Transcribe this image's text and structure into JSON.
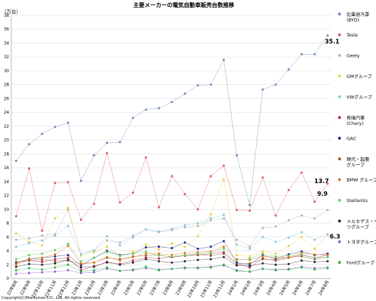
{
  "chart_data": {
    "type": "line",
    "title": "主要メーカーの電気自動車販売台数推移",
    "ylabel": "（万台）",
    "ylim": [
      0,
      38
    ],
    "yticks": [
      0,
      2,
      4,
      6,
      8,
      10,
      12,
      14,
      16,
      18,
      20,
      22,
      24,
      26,
      28,
      30,
      32,
      34,
      36,
      38
    ],
    "grid": true,
    "legend_position": "right",
    "categories": [
      "22年8月",
      "22年9月",
      "22年10月",
      "22年11月",
      "22年12月",
      "23年1月",
      "23年2月",
      "23年3月",
      "23年4月",
      "23年5月",
      "23年6月",
      "23年7月",
      "23年8月",
      "23年9月",
      "23年10月",
      "23年11月",
      "23年12月",
      "24年1月",
      "24年2月",
      "24年3月",
      "24年4月",
      "24年5月",
      "24年6月",
      "24年7月",
      "24年8月"
    ],
    "series": [
      {
        "name": "比亜迪汽車 (BYD)",
        "color": "#6f8fb8",
        "values": [
          17.0,
          19.4,
          20.9,
          21.9,
          22.5,
          14.1,
          17.8,
          19.6,
          19.7,
          23.2,
          24.4,
          24.6,
          25.5,
          26.7,
          27.9,
          28.0,
          31.6,
          17.8,
          10.6,
          27.3,
          28.0,
          30.2,
          32.4,
          32.4,
          35.1
        ]
      },
      {
        "name": "Tesla",
        "color": "#e06060",
        "values": [
          9.0,
          15.9,
          6.9,
          13.8,
          13.9,
          8.5,
          10.8,
          18.1,
          11.0,
          12.4,
          17.5,
          10.3,
          14.8,
          12.2,
          10.0,
          14.8,
          16.3,
          9.9,
          9.8,
          14.6,
          9.1,
          12.8,
          15.3,
          11.1,
          13.7
        ]
      },
      {
        "name": "Geely",
        "color": "#b5b5b5",
        "values": [
          5.6,
          5.8,
          6.2,
          6.4,
          9.9,
          3.5,
          4.0,
          5.5,
          5.2,
          6.2,
          7.1,
          6.7,
          7.0,
          7.4,
          7.6,
          8.4,
          8.7,
          5.6,
          4.6,
          7.3,
          7.5,
          8.4,
          9.1,
          8.7,
          9.9
        ]
      },
      {
        "name": "GMグループ",
        "color": "#e8d24a",
        "values": [
          6.5,
          5.3,
          4.8,
          8.7,
          10.2,
          3.3,
          3.8,
          4.6,
          3.2,
          3.9,
          4.9,
          4.2,
          5.1,
          4.6,
          6.1,
          9.3,
          14.3,
          3.4,
          3.2,
          3.9,
          3.6,
          4.7,
          6.0,
          4.3,
          6.3
        ]
      },
      {
        "name": "VWグループ",
        "color": "#8dc6e0",
        "values": [
          4.6,
          5.1,
          5.5,
          6.2,
          7.6,
          3.5,
          4.1,
          6.1,
          4.8,
          5.9,
          7.1,
          6.8,
          7.2,
          7.7,
          8.0,
          8.7,
          9.2,
          4.9,
          4.3,
          6.0,
          5.3,
          5.9,
          6.7,
          5.6,
          6.4
        ]
      },
      {
        "name": "奇瑞汽車 (Chery)",
        "color": "#c0234a",
        "values": [
          2.2,
          2.6,
          2.4,
          2.8,
          3.0,
          1.2,
          1.8,
          2.3,
          2.1,
          2.6,
          3.0,
          2.9,
          3.1,
          3.3,
          3.4,
          3.6,
          3.8,
          2.2,
          1.6,
          2.9,
          2.6,
          3.0,
          3.4,
          3.0,
          3.4
        ]
      },
      {
        "name": "GAC",
        "color": "#1f2a8a",
        "values": [
          2.3,
          2.8,
          3.0,
          3.2,
          3.4,
          1.9,
          3.0,
          4.0,
          3.4,
          3.6,
          4.5,
          4.6,
          4.4,
          5.2,
          4.3,
          4.6,
          5.4,
          2.3,
          2.0,
          3.4,
          2.8,
          3.5,
          3.9,
          3.4,
          3.6
        ]
      },
      {
        "name": "現代・起亜グループ",
        "color": "#8a5a2b",
        "values": [
          2.4,
          2.6,
          2.7,
          2.5,
          2.6,
          2.1,
          2.3,
          3.0,
          2.8,
          3.2,
          3.3,
          3.4,
          3.1,
          3.3,
          3.5,
          3.3,
          3.6,
          2.1,
          2.2,
          2.8,
          2.7,
          3.1,
          3.2,
          2.8,
          3.1
        ]
      },
      {
        "name": "BMW グループ",
        "color": "#e07a1a",
        "values": [
          2.0,
          2.9,
          3.0,
          3.5,
          4.7,
          2.2,
          2.3,
          3.1,
          2.6,
          3.1,
          3.6,
          3.6,
          3.4,
          3.7,
          3.8,
          3.9,
          4.6,
          2.8,
          2.7,
          3.2,
          3.1,
          3.0,
          3.7,
          3.5,
          3.4
        ]
      },
      {
        "name": "Stellantis",
        "color": "#6ad06a",
        "values": [
          2.8,
          3.4,
          3.6,
          4.1,
          5.0,
          2.5,
          3.0,
          3.8,
          3.3,
          3.6,
          3.9,
          3.3,
          3.2,
          3.4,
          3.6,
          3.7,
          4.3,
          2.6,
          2.9,
          3.6,
          3.2,
          3.3,
          3.5,
          3.0,
          3.1
        ]
      },
      {
        "name": "メルセデス・ベンツグループ",
        "color": "#2b2b3a",
        "values": [
          1.7,
          2.1,
          2.0,
          2.2,
          2.7,
          1.6,
          1.7,
          2.4,
          2.0,
          2.3,
          2.8,
          2.5,
          2.3,
          2.5,
          2.7,
          2.8,
          3.1,
          1.9,
          1.8,
          2.2,
          2.0,
          2.1,
          2.6,
          2.4,
          2.5
        ]
      },
      {
        "name": "トヨタグループ",
        "color": "#9a5ed6",
        "values": [
          0.7,
          0.8,
          0.9,
          1.0,
          1.2,
          0.8,
          0.9,
          1.4,
          1.1,
          1.2,
          1.5,
          1.3,
          1.4,
          1.5,
          1.6,
          1.7,
          1.9,
          1.2,
          1.0,
          1.4,
          1.3,
          1.4,
          1.7,
          1.5,
          1.6
        ]
      },
      {
        "name": "Fordグループ",
        "color": "#2fb24a",
        "values": [
          1.2,
          1.5,
          1.3,
          1.6,
          2.0,
          1.0,
          1.2,
          1.6,
          1.1,
          1.3,
          1.7,
          1.2,
          1.4,
          1.6,
          1.5,
          1.6,
          2.0,
          1.1,
          1.0,
          1.4,
          1.2,
          1.3,
          1.6,
          1.3,
          1.5
        ]
      }
    ],
    "annotations": [
      "35.1",
      "13.7",
      "9.9",
      "6.3"
    ],
    "copyright": "Copyright(C)MarkLines CO., Ltd. All rights reserved."
  }
}
